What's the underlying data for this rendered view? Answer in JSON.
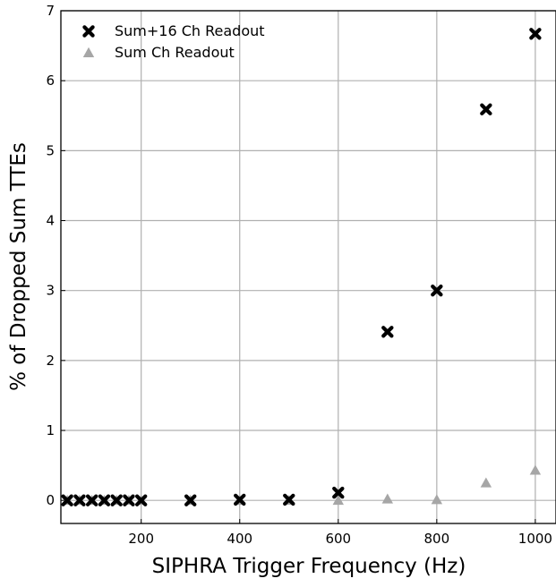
{
  "chart_data": {
    "type": "scatter",
    "title": "",
    "xlabel": "SIPHRA Trigger Frequency (Hz)",
    "ylabel": "% of Dropped Sum TTEs",
    "xlim": [
      37,
      1042
    ],
    "ylim": [
      -0.33,
      7
    ],
    "xticks": [
      200,
      400,
      600,
      800,
      1000
    ],
    "yticks": [
      0,
      1,
      2,
      3,
      4,
      5,
      6,
      7
    ],
    "grid": true,
    "legend_position": "top-left",
    "series": [
      {
        "name": "Sum+16 Ch Readout",
        "marker": "x",
        "color": "#000000",
        "x": [
          50,
          75,
          100,
          125,
          150,
          175,
          200,
          300,
          400,
          500,
          600,
          700,
          800,
          900,
          1000
        ],
        "y": [
          0,
          0,
          0,
          0,
          0,
          0,
          0,
          0,
          0.01,
          0.01,
          0.11,
          2.41,
          3.0,
          5.59,
          6.67
        ]
      },
      {
        "name": "Sum Ch Readout",
        "marker": "triangle",
        "color": "#a6a6a6",
        "x": [
          50,
          75,
          100,
          125,
          150,
          175,
          200,
          300,
          400,
          500,
          600,
          700,
          800,
          900,
          1000
        ],
        "y": [
          0,
          0,
          0,
          0,
          0,
          0,
          0,
          0,
          0,
          0,
          0,
          0.02,
          0.01,
          0.25,
          0.43
        ]
      }
    ]
  }
}
